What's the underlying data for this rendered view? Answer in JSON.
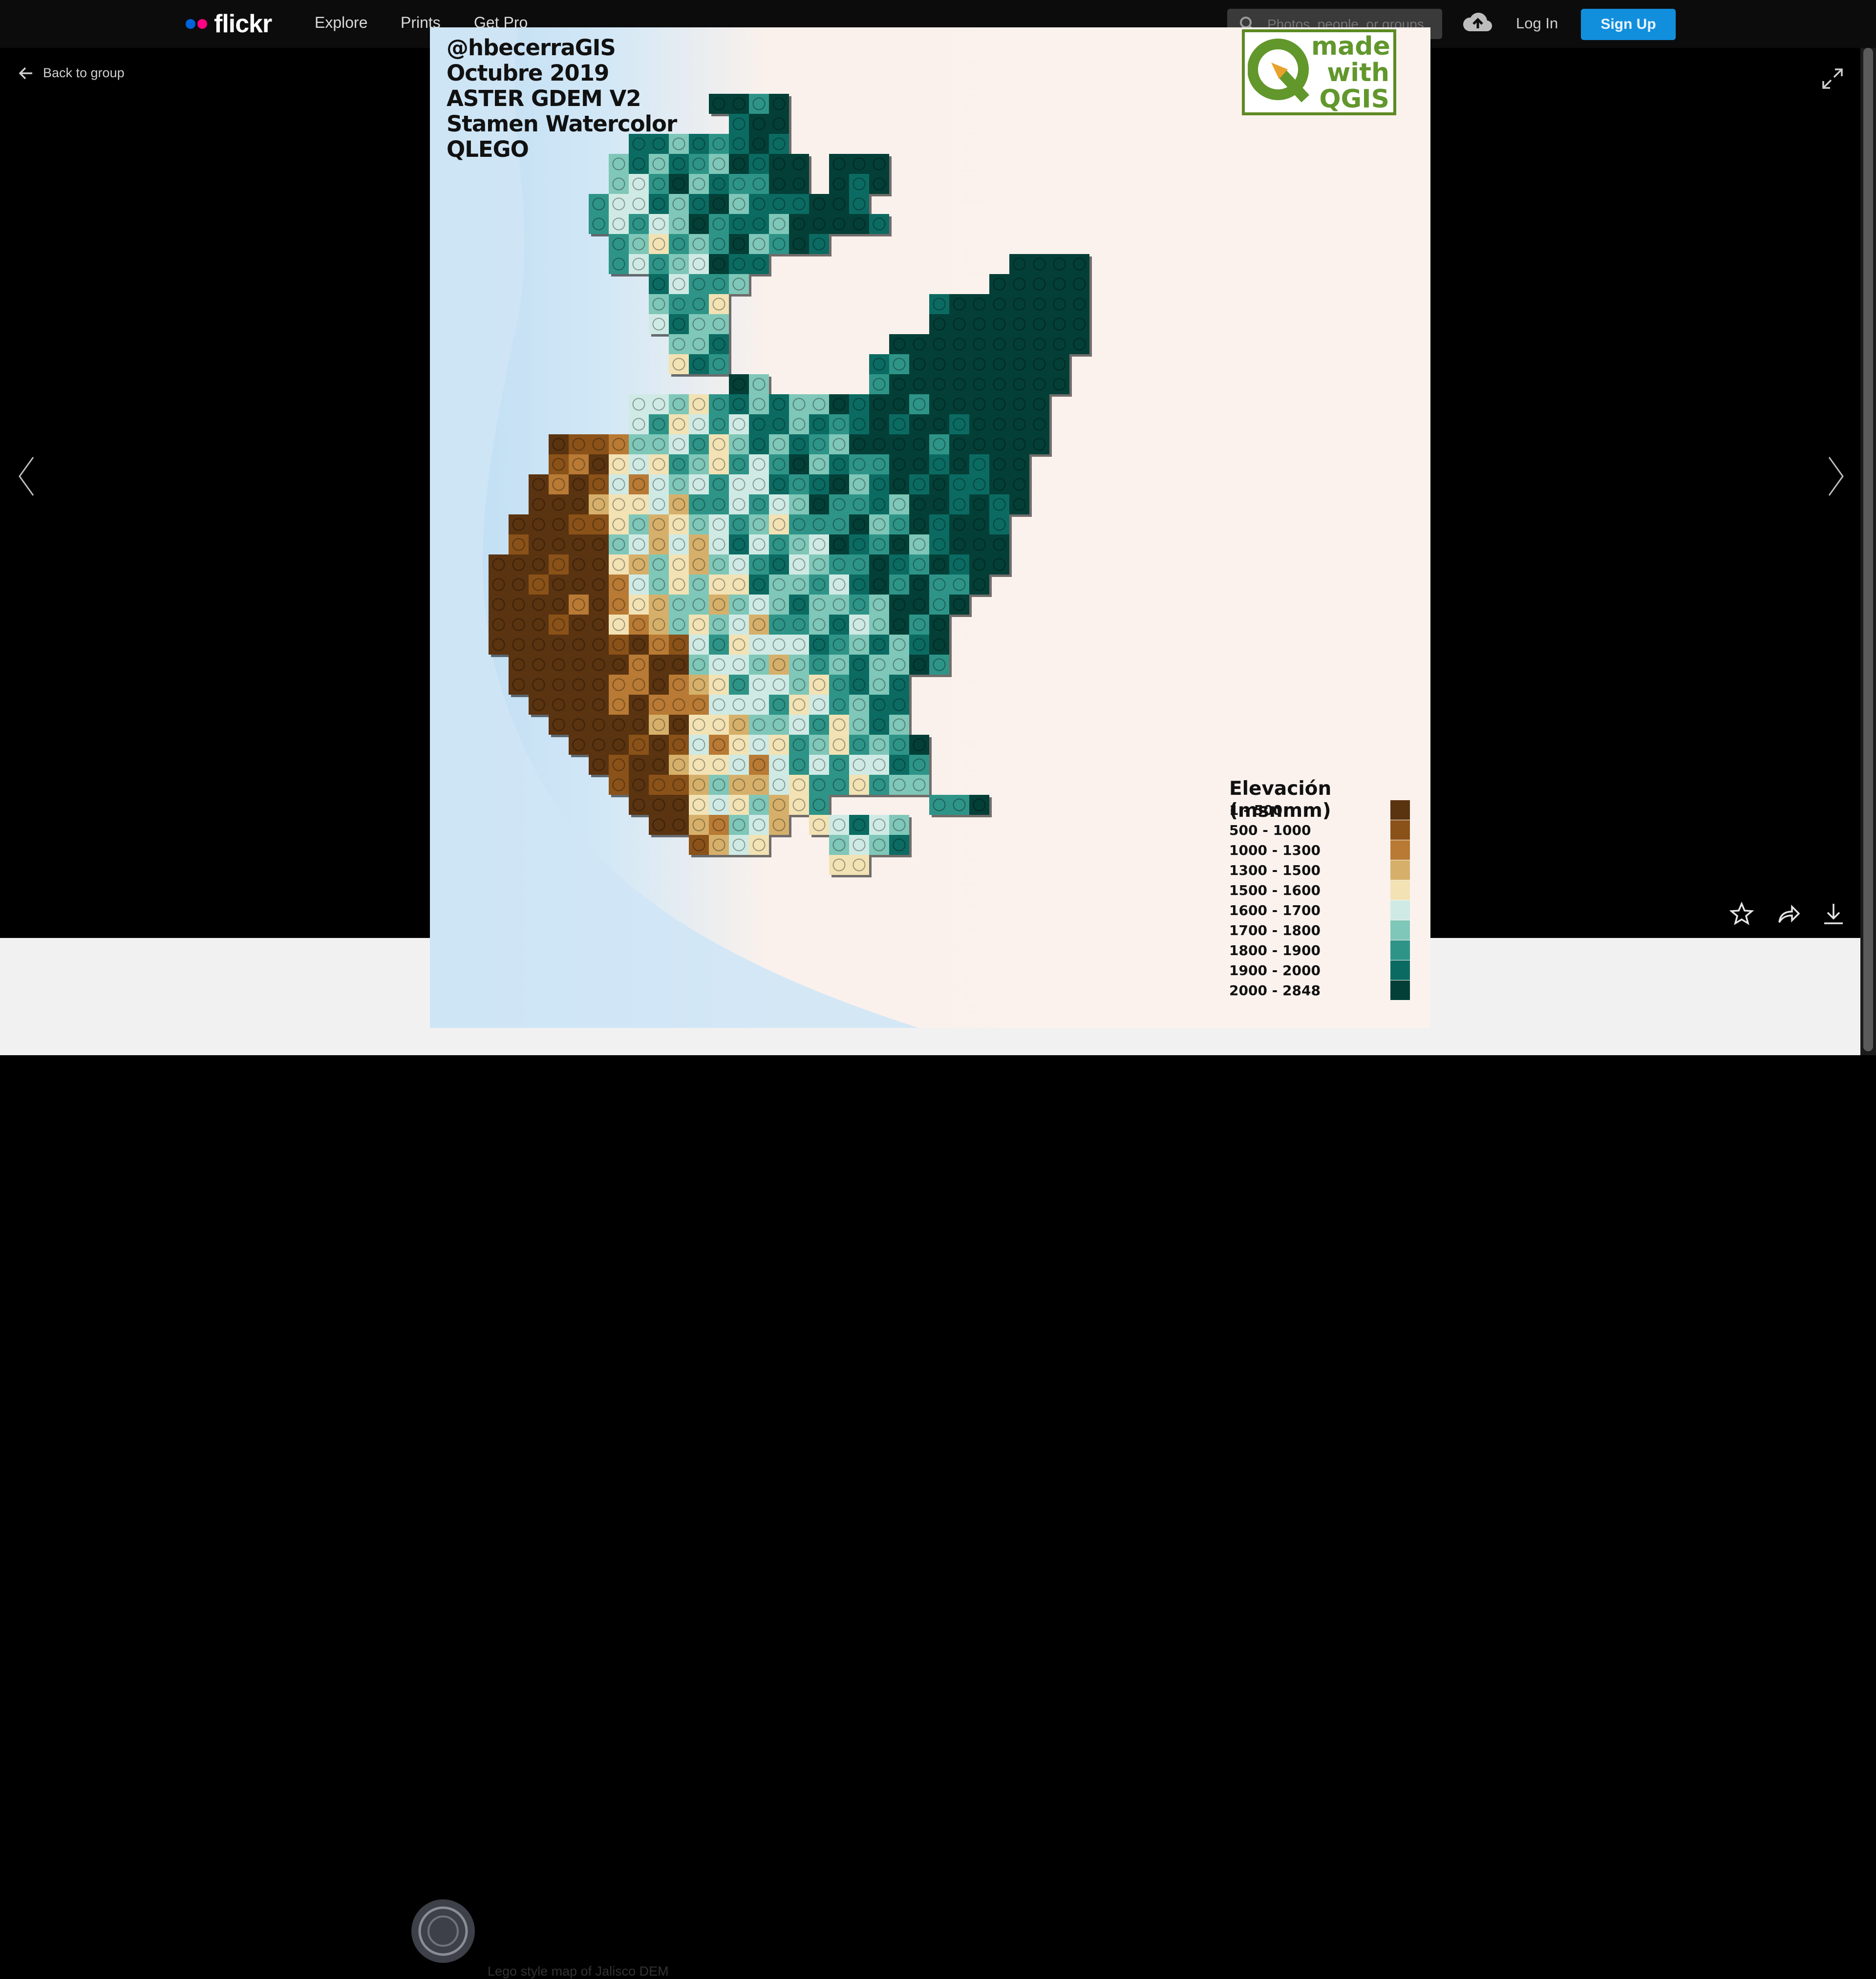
{
  "header": {
    "logo_text": "flickr",
    "nav": [
      "Explore",
      "Prints",
      "Get Pro"
    ],
    "search_placeholder": "Photos, people, or groups",
    "login_label": "Log In",
    "signup_label": "Sign Up"
  },
  "viewer": {
    "back_label": "Back to group",
    "caption": "Lego style map of Jalisco DEM"
  },
  "photo": {
    "credits": [
      "@hbecerraGIS",
      "Octubre 2019",
      "ASTER GDEM V2",
      "Stamen Watercolor",
      "QLEGO"
    ],
    "qgis_badge": [
      "made",
      "with",
      "QGIS"
    ],
    "legend_title": "Elevación (msnmm)",
    "legend": [
      {
        "label": "1 - 500",
        "color": "#5a3310"
      },
      {
        "label": "500 - 1000",
        "color": "#8a5219"
      },
      {
        "label": "1000 - 1300",
        "color": "#b87a34"
      },
      {
        "label": "1300 - 1500",
        "color": "#d6b06a"
      },
      {
        "label": "1500 - 1600",
        "color": "#f2e2b4"
      },
      {
        "label": "1600 - 1700",
        "color": "#cfeae4"
      },
      {
        "label": "1700 - 1800",
        "color": "#7fc7b8"
      },
      {
        "label": "1800 - 1900",
        "color": "#2e9488"
      },
      {
        "label": "1900 - 2000",
        "color": "#0b6b62"
      },
      {
        "label": "2000 - 2848",
        "color": "#033f37"
      }
    ]
  },
  "colors": {
    "brand_blue": "#0063dc",
    "brand_pink": "#ff0084",
    "signup_bg": "#128fdc",
    "qgis_green": "#62972c"
  }
}
